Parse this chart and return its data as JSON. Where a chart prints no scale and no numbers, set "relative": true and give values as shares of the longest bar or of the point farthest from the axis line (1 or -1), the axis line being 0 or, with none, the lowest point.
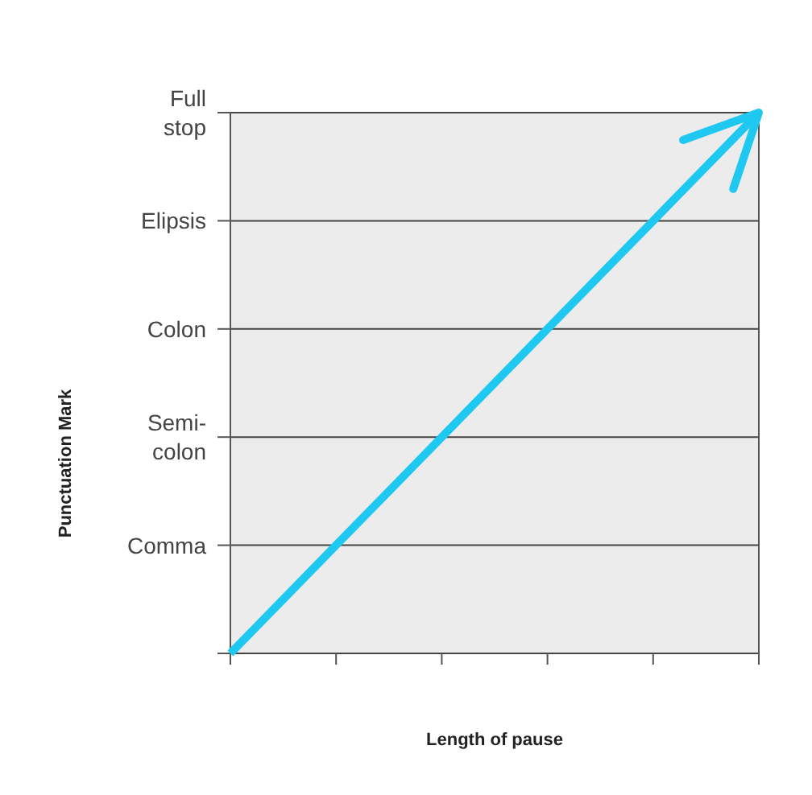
{
  "chart_data": {
    "type": "line",
    "orientation": "horizontal",
    "relative": true,
    "xlabel": "Length of pause",
    "ylabel": "Punctuation Mark",
    "categories": [
      "Full stop",
      "Elipsis",
      "Colon",
      "Semi-colon",
      "Comma",
      null
    ],
    "series": [
      {
        "color": "#1ec8f0",
        "values": [
          1,
          0.8,
          0.6,
          0.4,
          0.2,
          0
        ]
      }
    ],
    "grid": "y",
    "marker": "none",
    "line_style": "solid"
  }
}
